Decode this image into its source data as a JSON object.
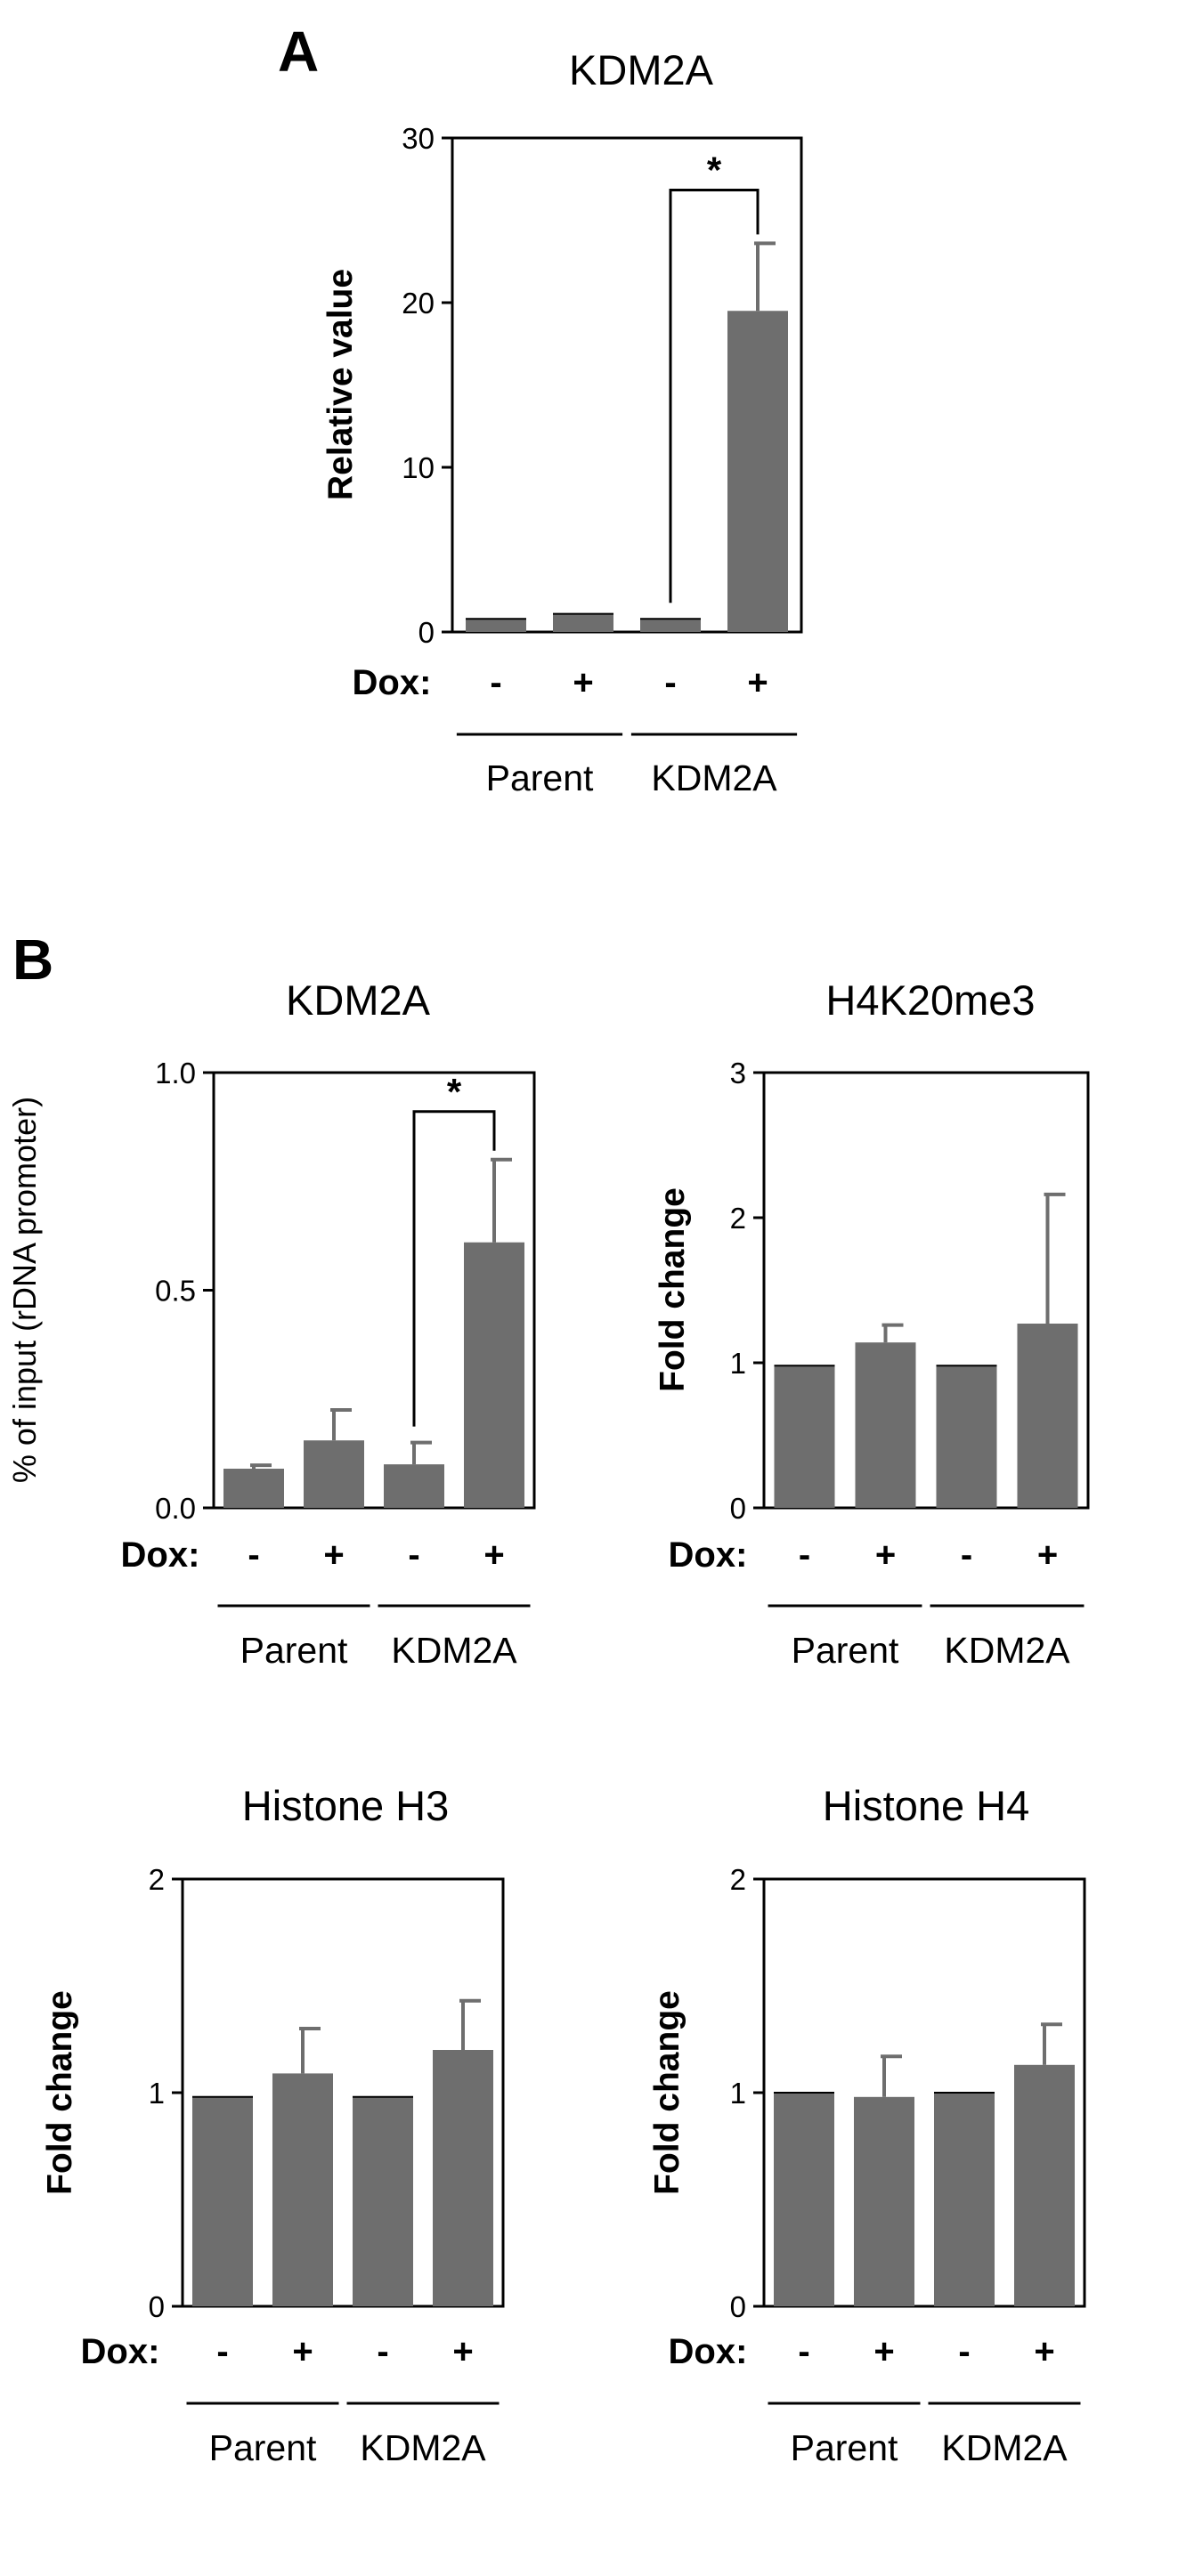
{
  "panels": [
    {
      "id": "A",
      "letter": "A"
    },
    {
      "id": "B",
      "letter": "B"
    }
  ],
  "chart_data": [
    {
      "panel": "A",
      "type": "bar",
      "title": "KDM2A",
      "ylabel": "Relative value",
      "ylim": [
        0,
        30
      ],
      "yticks": [
        0,
        10,
        20,
        30
      ],
      "ytick_labels": [
        "0",
        "10",
        "20",
        "30"
      ],
      "x_row_label": "Dox:",
      "categories": [
        "-",
        "+",
        "-",
        "+"
      ],
      "groups": [
        {
          "label": "Parent",
          "bars": [
            0,
            1
          ]
        },
        {
          "label": "KDM2A",
          "bars": [
            2,
            3
          ]
        }
      ],
      "values": [
        0.8,
        1.1,
        0.8,
        19.5
      ],
      "errors": [
        0,
        0,
        0,
        4.1
      ],
      "significance": [
        {
          "from": 2,
          "to": 3,
          "label": "*"
        }
      ],
      "color": "#6e6e6e"
    },
    {
      "panel": "B",
      "type": "bar",
      "title": "KDM2A",
      "ylabel": "% of input (rDNA promoter)",
      "ylim": [
        0,
        1.0
      ],
      "yticks": [
        0,
        0.5,
        1.0
      ],
      "ytick_labels": [
        "0.0",
        "0.5",
        "1.0"
      ],
      "x_row_label": "Dox:",
      "categories": [
        "-",
        "+",
        "-",
        "+"
      ],
      "groups": [
        {
          "label": "Parent",
          "bars": [
            0,
            1
          ]
        },
        {
          "label": "KDM2A",
          "bars": [
            2,
            3
          ]
        }
      ],
      "values": [
        0.09,
        0.155,
        0.1,
        0.61
      ],
      "errors": [
        0.008,
        0.07,
        0.05,
        0.19
      ],
      "significance": [
        {
          "from": 2,
          "to": 3,
          "label": "*"
        }
      ],
      "color": "#6e6e6e"
    },
    {
      "panel": "B",
      "type": "bar",
      "title": "H4K20me3",
      "ylabel": "Fold change",
      "ylim": [
        0,
        3
      ],
      "yticks": [
        0,
        1,
        2,
        3
      ],
      "ytick_labels": [
        "0",
        "1",
        "2",
        "3"
      ],
      "x_row_label": "Dox:",
      "categories": [
        "-",
        "+",
        "-",
        "+"
      ],
      "groups": [
        {
          "label": "Parent",
          "bars": [
            0,
            1
          ]
        },
        {
          "label": "KDM2A",
          "bars": [
            2,
            3
          ]
        }
      ],
      "values": [
        0.98,
        1.14,
        0.98,
        1.27
      ],
      "errors": [
        0,
        0.12,
        0,
        0.89
      ],
      "significance": [],
      "color": "#6e6e6e"
    },
    {
      "panel": "B",
      "type": "bar",
      "title": "Histone H3",
      "ylabel": "Fold change",
      "ylim": [
        0,
        2
      ],
      "yticks": [
        0,
        1,
        2
      ],
      "ytick_labels": [
        "0",
        "1",
        "2"
      ],
      "x_row_label": "Dox:",
      "categories": [
        "-",
        "+",
        "-",
        "+"
      ],
      "groups": [
        {
          "label": "Parent",
          "bars": [
            0,
            1
          ]
        },
        {
          "label": "KDM2A",
          "bars": [
            2,
            3
          ]
        }
      ],
      "values": [
        0.98,
        1.09,
        0.98,
        1.2
      ],
      "errors": [
        0,
        0.21,
        0,
        0.23
      ],
      "significance": [],
      "color": "#6e6e6e"
    },
    {
      "panel": "B",
      "type": "bar",
      "title": "Histone H4",
      "ylabel": "Fold change",
      "ylim": [
        0,
        2
      ],
      "yticks": [
        0,
        1,
        2
      ],
      "ytick_labels": [
        "0",
        "1",
        "2"
      ],
      "x_row_label": "Dox:",
      "categories": [
        "-",
        "+",
        "-",
        "+"
      ],
      "groups": [
        {
          "label": "Parent",
          "bars": [
            0,
            1
          ]
        },
        {
          "label": "KDM2A",
          "bars": [
            2,
            3
          ]
        }
      ],
      "values": [
        1.0,
        0.98,
        1.0,
        1.13
      ],
      "errors": [
        0,
        0.19,
        0,
        0.19
      ],
      "significance": [],
      "color": "#6e6e6e"
    }
  ]
}
